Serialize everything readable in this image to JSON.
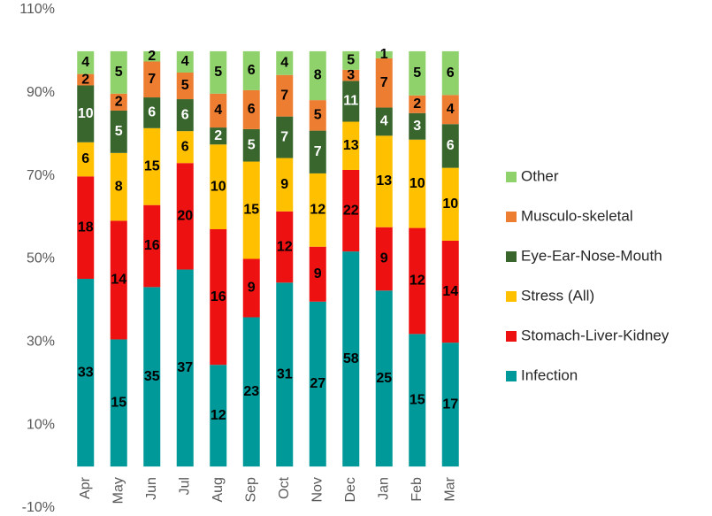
{
  "chart_data": {
    "type": "bar",
    "stacking": "percent",
    "categories": [
      "Apr",
      "May",
      "Jun",
      "Jul",
      "Aug",
      "Sep",
      "Oct",
      "Nov",
      "Dec",
      "Jan",
      "Feb",
      "Mar"
    ],
    "series": [
      {
        "name": "Infection",
        "color": "#009999",
        "label_color": "#000000",
        "values": [
          33,
          15,
          35,
          37,
          12,
          23,
          31,
          27,
          58,
          25,
          15,
          17
        ]
      },
      {
        "name": "Stomach-Liver-Kidney",
        "color": "#ee1111",
        "label_color": "#000000",
        "values": [
          18,
          14,
          16,
          20,
          16,
          9,
          12,
          9,
          22,
          9,
          12,
          14
        ]
      },
      {
        "name": "Stress (All)",
        "color": "#ffc000",
        "label_color": "#000000",
        "values": [
          6,
          8,
          15,
          6,
          10,
          15,
          9,
          12,
          13,
          13,
          10,
          10
        ]
      },
      {
        "name": "Eye-Ear-Nose-Mouth",
        "color": "#38662d",
        "label_color": "#ffffff",
        "values": [
          10,
          5,
          6,
          6,
          2,
          5,
          7,
          7,
          11,
          4,
          3,
          6
        ]
      },
      {
        "name": "Musculo-skeletal",
        "color": "#ed7d31",
        "label_color": "#000000",
        "values": [
          2,
          2,
          7,
          5,
          4,
          6,
          7,
          5,
          3,
          7,
          2,
          4
        ]
      },
      {
        "name": "Other",
        "color": "#8fd16a",
        "label_color": "#000000",
        "values": [
          4,
          5,
          2,
          4,
          5,
          6,
          4,
          8,
          5,
          1,
          5,
          6
        ]
      }
    ],
    "ylim": [
      -10,
      110
    ],
    "yticks": [
      {
        "value": -10,
        "label": "-10%"
      },
      {
        "value": 10,
        "label": "10%"
      },
      {
        "value": 30,
        "label": "30%"
      },
      {
        "value": 50,
        "label": "50%"
      },
      {
        "value": 70,
        "label": "70%"
      },
      {
        "value": 90,
        "label": "90%"
      },
      {
        "value": 110,
        "label": "110%"
      }
    ],
    "grid": false,
    "legend": "right"
  }
}
